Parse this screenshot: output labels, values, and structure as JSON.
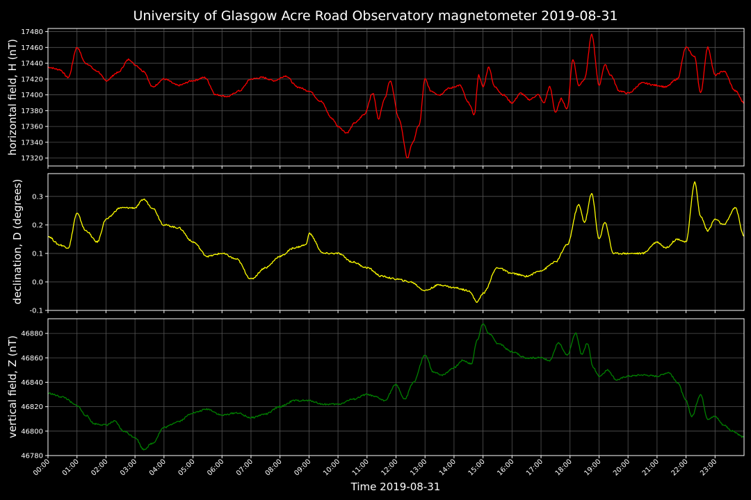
{
  "title": "University of Glasgow Acre Road Observatory magnetometer 2019-08-31",
  "chart_data": [
    {
      "type": "line",
      "ylabel": "horizontal field, H (nT)",
      "color": "#ff0000",
      "ylim": [
        17310,
        17484
      ],
      "yticks": [
        17320,
        17340,
        17360,
        17380,
        17400,
        17420,
        17440,
        17460,
        17480
      ],
      "grid": true,
      "x": [
        0,
        0.4,
        0.7,
        1.0,
        1.3,
        1.7,
        2.0,
        2.4,
        2.8,
        3.0,
        3.3,
        3.6,
        4.0,
        4.5,
        5.0,
        5.4,
        5.8,
        6.2,
        6.6,
        7.0,
        7.4,
        7.8,
        8.2,
        8.6,
        9.0,
        9.4,
        9.8,
        10.0,
        10.3,
        10.6,
        10.9,
        11.2,
        11.4,
        11.6,
        11.8,
        12.1,
        12.4,
        12.55,
        12.8,
        13.0,
        13.2,
        13.5,
        13.8,
        14.2,
        14.5,
        14.7,
        14.85,
        15.0,
        15.2,
        15.4,
        15.7,
        16.0,
        16.3,
        16.6,
        16.9,
        17.1,
        17.3,
        17.5,
        17.7,
        17.9,
        18.1,
        18.3,
        18.5,
        18.75,
        19.0,
        19.2,
        19.4,
        19.7,
        20.0,
        20.5,
        21.0,
        21.3,
        21.7,
        22.0,
        22.3,
        22.5,
        22.75,
        23.0,
        23.3,
        23.7,
        24.0
      ],
      "y": [
        17435,
        17432,
        17422,
        17460,
        17440,
        17430,
        17418,
        17428,
        17445,
        17438,
        17430,
        17410,
        17420,
        17412,
        17418,
        17422,
        17400,
        17398,
        17405,
        17420,
        17422,
        17418,
        17424,
        17410,
        17405,
        17392,
        17370,
        17360,
        17352,
        17365,
        17375,
        17402,
        17370,
        17395,
        17418,
        17370,
        17320,
        17338,
        17362,
        17420,
        17405,
        17400,
        17408,
        17412,
        17390,
        17375,
        17425,
        17410,
        17435,
        17410,
        17400,
        17390,
        17402,
        17394,
        17400,
        17390,
        17410,
        17378,
        17395,
        17382,
        17445,
        17412,
        17420,
        17476,
        17412,
        17438,
        17425,
        17405,
        17402,
        17415,
        17412,
        17410,
        17420,
        17460,
        17448,
        17402,
        17460,
        17425,
        17430,
        17405,
        17390
      ],
      "xlim": [
        0,
        24
      ]
    },
    {
      "type": "line",
      "ylabel": "declination, D (degrees)",
      "color": "#ffff00",
      "ylim": [
        -0.1,
        0.38
      ],
      "yticks": [
        -0.1,
        0.0,
        0.1,
        0.2,
        0.3
      ],
      "grid": true,
      "x": [
        0,
        0.4,
        0.7,
        1.0,
        1.3,
        1.7,
        2.0,
        2.5,
        3.0,
        3.3,
        3.6,
        4.0,
        4.5,
        5.0,
        5.5,
        6.0,
        6.5,
        7.0,
        7.5,
        8.0,
        8.5,
        8.9,
        9.0,
        9.5,
        10.0,
        10.5,
        11.0,
        11.5,
        12.0,
        12.5,
        13.0,
        13.5,
        14.0,
        14.5,
        14.8,
        15.0,
        15.5,
        16.0,
        16.5,
        17.0,
        17.5,
        17.9,
        18.3,
        18.5,
        18.75,
        19.0,
        19.2,
        19.5,
        20.0,
        20.5,
        21.0,
        21.3,
        21.7,
        22.0,
        22.3,
        22.5,
        22.75,
        23.0,
        23.3,
        23.7,
        24.0
      ],
      "y": [
        0.16,
        0.13,
        0.12,
        0.24,
        0.18,
        0.14,
        0.22,
        0.26,
        0.26,
        0.29,
        0.26,
        0.2,
        0.19,
        0.14,
        0.09,
        0.1,
        0.08,
        0.01,
        0.05,
        0.09,
        0.12,
        0.13,
        0.17,
        0.1,
        0.1,
        0.07,
        0.05,
        0.02,
        0.01,
        0.0,
        -0.03,
        -0.01,
        -0.02,
        -0.03,
        -0.07,
        -0.04,
        0.05,
        0.03,
        0.02,
        0.04,
        0.07,
        0.13,
        0.27,
        0.21,
        0.31,
        0.15,
        0.21,
        0.1,
        0.1,
        0.1,
        0.14,
        0.12,
        0.15,
        0.14,
        0.35,
        0.23,
        0.18,
        0.22,
        0.2,
        0.26,
        0.16
      ],
      "xlim": [
        0,
        24
      ]
    },
    {
      "type": "line",
      "ylabel": "vertical field, Z (nT)",
      "color": "#008000",
      "ylim": [
        46780,
        46892
      ],
      "yticks": [
        46780,
        46800,
        46820,
        46840,
        46860,
        46880
      ],
      "grid": true,
      "x": [
        0,
        0.5,
        1.0,
        1.3,
        1.6,
        2.0,
        2.3,
        2.6,
        3.0,
        3.3,
        3.6,
        4.0,
        4.5,
        5.0,
        5.5,
        6.0,
        6.5,
        7.0,
        7.5,
        8.0,
        8.5,
        9.0,
        9.5,
        10.0,
        10.5,
        11.0,
        11.3,
        11.6,
        12.0,
        12.3,
        12.6,
        13.0,
        13.3,
        13.6,
        14.0,
        14.3,
        14.6,
        14.8,
        15.0,
        15.2,
        15.5,
        16.0,
        16.5,
        17.0,
        17.3,
        17.6,
        17.9,
        18.2,
        18.4,
        18.6,
        18.8,
        19.0,
        19.3,
        19.6,
        20.0,
        20.5,
        21.0,
        21.4,
        21.7,
        22.0,
        22.2,
        22.5,
        22.75,
        23.0,
        23.3,
        23.6,
        24.0
      ],
      "y": [
        46831,
        46828,
        46821,
        46813,
        46806,
        46805,
        46808,
        46800,
        46795,
        46785,
        46790,
        46803,
        46808,
        46815,
        46818,
        46813,
        46815,
        46811,
        46814,
        46820,
        46825,
        46825,
        46822,
        46822,
        46826,
        46830,
        46828,
        46825,
        46838,
        46826,
        46840,
        46862,
        46848,
        46846,
        46852,
        46858,
        46855,
        46875,
        46888,
        46880,
        46872,
        46865,
        46860,
        46860,
        46858,
        46872,
        46862,
        46880,
        46863,
        46872,
        46852,
        46845,
        46850,
        46842,
        46845,
        46846,
        46845,
        46848,
        46840,
        46825,
        46812,
        46830,
        46810,
        46812,
        46805,
        46800,
        46795
      ],
      "xlim": [
        0,
        24
      ]
    }
  ],
  "x_axis": {
    "label": "Time 2019-08-31",
    "ticks": [
      "00:00",
      "01:00",
      "02:00",
      "03:00",
      "04:00",
      "05:00",
      "06:00",
      "07:00",
      "08:00",
      "09:00",
      "10:00",
      "11:00",
      "12:00",
      "13:00",
      "14:00",
      "15:00",
      "16:00",
      "17:00",
      "18:00",
      "19:00",
      "20:00",
      "21:00",
      "22:00",
      "23:00"
    ]
  }
}
